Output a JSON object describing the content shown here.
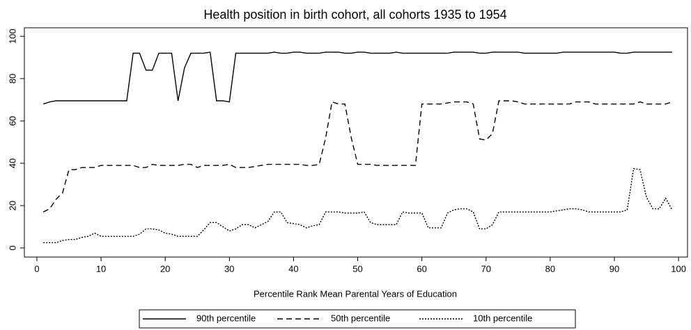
{
  "chart_data": {
    "type": "line",
    "title": "Health position in birth cohort, all cohorts 1935 to 1954",
    "x_label": "Percentile Rank Mean Parental Years of Education",
    "x": [
      1,
      2,
      3,
      4,
      5,
      6,
      7,
      8,
      9,
      10,
      11,
      12,
      13,
      14,
      15,
      16,
      17,
      18,
      19,
      20,
      21,
      22,
      23,
      24,
      25,
      26,
      27,
      28,
      29,
      30,
      31,
      32,
      33,
      34,
      35,
      36,
      37,
      38,
      39,
      40,
      41,
      42,
      43,
      44,
      45,
      46,
      47,
      48,
      49,
      50,
      51,
      52,
      53,
      54,
      55,
      56,
      57,
      58,
      59,
      60,
      61,
      62,
      63,
      64,
      65,
      66,
      67,
      68,
      69,
      70,
      71,
      72,
      73,
      74,
      75,
      76,
      77,
      78,
      79,
      80,
      81,
      82,
      83,
      84,
      85,
      86,
      87,
      88,
      89,
      90,
      91,
      92,
      93,
      94,
      95,
      96,
      97,
      98,
      99
    ],
    "series": [
      {
        "name": "90th percentile",
        "color": "#000000",
        "dash": "solid",
        "values": [
          68,
          69,
          69.5,
          69.5,
          69.5,
          69.5,
          69.5,
          69.5,
          69.5,
          69.5,
          69.5,
          69.5,
          69.5,
          69.5,
          92,
          92,
          84,
          84,
          92,
          92,
          92,
          69.5,
          85,
          92,
          92,
          92,
          92.5,
          69.5,
          69.5,
          69,
          92,
          92,
          92,
          92,
          92,
          92,
          92.5,
          92,
          92,
          92.5,
          92.5,
          92,
          92,
          92,
          92.5,
          92.5,
          92.5,
          92,
          92,
          92.5,
          92.5,
          92,
          92,
          92,
          92,
          92.5,
          92,
          92,
          92,
          92,
          92,
          92,
          92,
          92,
          92.5,
          92.5,
          92.5,
          92.5,
          92,
          92,
          92.5,
          92.5,
          92.5,
          92.5,
          92.5,
          92,
          92,
          92,
          92,
          92,
          92,
          92.5,
          92.5,
          92.5,
          92.5,
          92.5,
          92.5,
          92.5,
          92.5,
          92.5,
          92,
          92,
          92.5,
          92.5,
          92.5,
          92.5,
          92.5,
          92.5,
          92.5
        ]
      },
      {
        "name": "50th percentile",
        "color": "#000000",
        "dash": "dashed",
        "values": [
          17,
          18.5,
          23,
          26,
          37,
          37,
          38,
          38,
          38,
          39,
          39,
          39,
          39,
          39,
          39,
          38,
          38,
          39.5,
          39,
          39,
          39,
          39,
          39.5,
          39.5,
          38,
          39,
          39,
          39,
          39,
          39.5,
          38,
          38,
          38,
          38.5,
          39,
          39.5,
          39.5,
          39.5,
          39.5,
          39.5,
          39.5,
          39,
          39,
          39.5,
          52,
          69,
          68,
          68,
          52,
          39.5,
          39.5,
          39.5,
          39,
          39,
          39,
          39,
          39,
          39,
          39,
          68,
          68,
          68,
          68,
          68.5,
          69,
          69,
          69,
          68,
          51.5,
          51,
          54,
          69.5,
          69.5,
          69.5,
          69,
          68,
          68,
          68,
          68,
          68,
          68,
          68,
          68,
          69,
          69,
          69,
          68,
          68,
          68,
          68,
          68,
          68,
          68,
          69,
          68,
          68,
          68,
          68,
          69
        ]
      },
      {
        "name": "10th percentile",
        "color": "#000000",
        "dash": "dotted",
        "values": [
          2.5,
          2.5,
          2.5,
          3.5,
          4,
          4,
          5,
          5.5,
          7,
          5.5,
          5.5,
          5.5,
          5.5,
          5.5,
          5.5,
          6.5,
          9,
          9,
          8.5,
          7,
          6.5,
          5.5,
          5.5,
          5.5,
          5.5,
          8.5,
          12,
          12,
          10,
          8,
          9,
          11,
          11,
          9.5,
          11,
          12.5,
          17,
          17,
          12,
          11.5,
          11,
          9.5,
          10.5,
          11,
          17,
          17,
          17,
          16.5,
          16.5,
          16.5,
          17,
          12,
          11,
          11,
          11,
          11,
          17,
          16.5,
          16.5,
          16.5,
          9.5,
          9.5,
          9.5,
          16.5,
          18,
          18.5,
          18.5,
          17,
          9,
          9,
          11,
          17,
          17,
          17,
          17,
          17,
          17,
          17,
          17,
          17,
          17.5,
          18,
          18.5,
          18.5,
          18,
          17,
          17,
          17,
          17,
          17,
          17,
          18,
          37.5,
          37,
          24,
          18.5,
          18.5,
          23.5,
          18
        ]
      }
    ],
    "xlim": [
      -1.95,
      101.4
    ],
    "ylim": [
      -4.3,
      104
    ],
    "xticks": [
      0,
      10,
      20,
      30,
      40,
      50,
      60,
      70,
      80,
      90,
      100
    ],
    "yticks": [
      0,
      20,
      40,
      60,
      80,
      100
    ],
    "grid": false
  }
}
